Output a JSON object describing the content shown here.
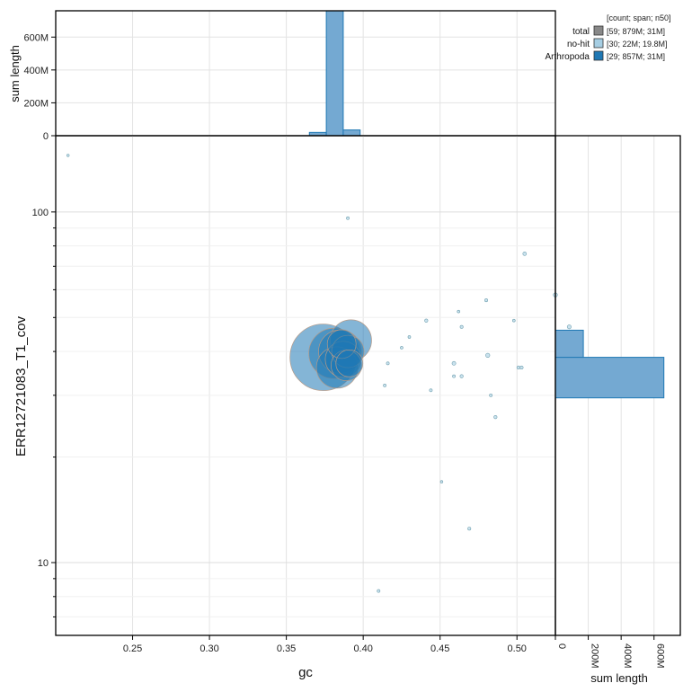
{
  "chart_data": {
    "type": "scatter",
    "xlabel": "gc",
    "ylabel": "ERR12721083_T1_cov",
    "x_scale": "linear",
    "y_scale": "log",
    "xlim": [
      0.2,
      0.525
    ],
    "ylim": [
      6.2,
      165
    ],
    "x_ticks": [
      0.25,
      0.3,
      0.35,
      0.4,
      0.45,
      0.5
    ],
    "x_tick_labels": [
      "0.25",
      "0.30",
      "0.35",
      "0.40",
      "0.45",
      "0.50"
    ],
    "y_ticks": [
      10,
      100
    ],
    "y_tick_labels": [
      "10",
      "100"
    ],
    "grid": true,
    "legend": {
      "position": "top-right",
      "header": "[count; span; n50]",
      "entries": [
        {
          "name": "total",
          "stats": "[59; 879M; 31M]",
          "color": "#888888"
        },
        {
          "name": "no-hit",
          "stats": "[30; 22M; 19.8M]",
          "color": "#a6cee3"
        },
        {
          "name": "Arthropoda",
          "stats": "[29; 857M; 31M]",
          "color": "#1f78b4"
        }
      ]
    },
    "top_histogram": {
      "ylabel": "sum length",
      "y_ticks": [
        0,
        200,
        400,
        600
      ],
      "y_tick_labels": [
        "0",
        "200M",
        "400M",
        "600M"
      ],
      "ylim": [
        0,
        760
      ],
      "bins": [
        {
          "x0": 0.365,
          "x1": 0.376,
          "value": 20
        },
        {
          "x0": 0.376,
          "x1": 0.387,
          "value": 780
        },
        {
          "x0": 0.387,
          "x1": 0.398,
          "value": 35
        }
      ]
    },
    "right_histogram": {
      "xlabel": "sum length",
      "x_ticks": [
        0,
        200,
        400,
        600
      ],
      "x_tick_labels": [
        "0",
        "200M",
        "400M",
        "600M"
      ],
      "xlim": [
        0,
        760
      ],
      "bins": [
        {
          "y0": 29.5,
          "y1": 38.5,
          "value": 660
        },
        {
          "y0": 38.5,
          "y1": 46,
          "value": 170
        }
      ]
    },
    "series": [
      {
        "name": "no-hit",
        "color": "#a6cee3",
        "points": [
          {
            "x": 0.208,
            "y": 145,
            "r": 1.4
          },
          {
            "x": 0.39,
            "y": 96,
            "r": 1.6
          },
          {
            "x": 0.505,
            "y": 76,
            "r": 2.0
          },
          {
            "x": 0.525,
            "y": 58,
            "r": 2.3
          },
          {
            "x": 0.48,
            "y": 56,
            "r": 1.7
          },
          {
            "x": 0.462,
            "y": 52,
            "r": 1.5
          },
          {
            "x": 0.498,
            "y": 49,
            "r": 1.5
          },
          {
            "x": 0.441,
            "y": 49,
            "r": 1.8
          },
          {
            "x": 0.464,
            "y": 47,
            "r": 1.7
          },
          {
            "x": 0.534,
            "y": 47,
            "r": 2.2
          },
          {
            "x": 0.43,
            "y": 44,
            "r": 1.5
          },
          {
            "x": 0.425,
            "y": 41,
            "r": 1.5
          },
          {
            "x": 0.481,
            "y": 39,
            "r": 2.3
          },
          {
            "x": 0.416,
            "y": 37,
            "r": 1.6
          },
          {
            "x": 0.459,
            "y": 37,
            "r": 2.1
          },
          {
            "x": 0.501,
            "y": 36,
            "r": 1.8
          },
          {
            "x": 0.503,
            "y": 36,
            "r": 1.8
          },
          {
            "x": 0.459,
            "y": 34,
            "r": 1.6
          },
          {
            "x": 0.464,
            "y": 34,
            "r": 1.8
          },
          {
            "x": 0.414,
            "y": 32,
            "r": 1.6
          },
          {
            "x": 0.444,
            "y": 31,
            "r": 1.6
          },
          {
            "x": 0.483,
            "y": 30,
            "r": 1.6
          },
          {
            "x": 0.486,
            "y": 26,
            "r": 1.8
          },
          {
            "x": 0.451,
            "y": 17,
            "r": 1.4
          },
          {
            "x": 0.469,
            "y": 12.5,
            "r": 1.7
          },
          {
            "x": 0.41,
            "y": 8.3,
            "r": 1.6
          }
        ]
      },
      {
        "name": "Arthropoda",
        "color": "#1f78b4",
        "points": [
          {
            "x": 0.374,
            "y": 38.5,
            "r": 37
          },
          {
            "x": 0.381,
            "y": 39.5,
            "r": 28
          },
          {
            "x": 0.392,
            "y": 43,
            "r": 23
          },
          {
            "x": 0.385,
            "y": 40,
            "r": 24
          },
          {
            "x": 0.383,
            "y": 36,
            "r": 23
          },
          {
            "x": 0.387,
            "y": 38,
            "r": 20
          },
          {
            "x": 0.39,
            "y": 40,
            "r": 18
          },
          {
            "x": 0.389,
            "y": 36.5,
            "r": 17
          },
          {
            "x": 0.386,
            "y": 42,
            "r": 16
          },
          {
            "x": 0.391,
            "y": 37,
            "r": 15
          }
        ]
      }
    ]
  }
}
